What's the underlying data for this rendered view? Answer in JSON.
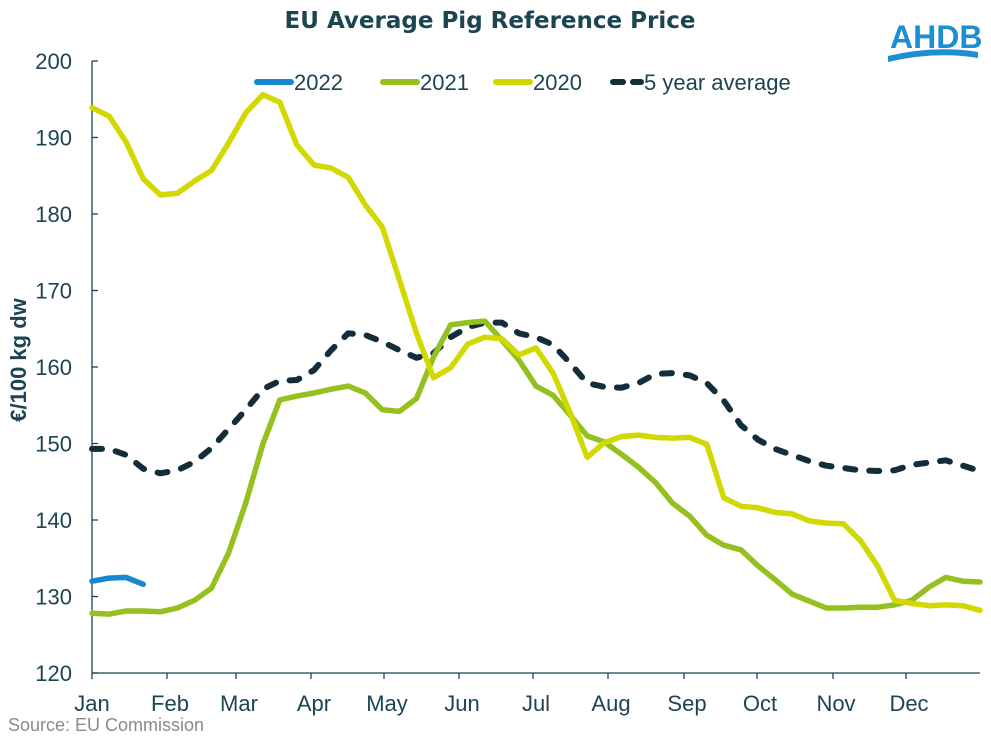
{
  "logo": {
    "text": "AHDB",
    "color": "#1b8fd2"
  },
  "source": "Source: EU Commission",
  "chart_data": {
    "type": "line",
    "title": "EU Average Pig Reference Price",
    "xlabel": "",
    "ylabel": "€/100 kg dw",
    "ylim": [
      120,
      200
    ],
    "yticks": [
      120,
      130,
      140,
      150,
      160,
      170,
      180,
      190,
      200
    ],
    "xticks": [
      "Jan",
      "Feb",
      "Mar",
      "Apr",
      "May",
      "Jun",
      "Jul",
      "Aug",
      "Sep",
      "Oct",
      "Nov",
      "Dec"
    ],
    "x_unit": "week",
    "grid": false,
    "legend_position": "top",
    "series": [
      {
        "name": "2022",
        "color": "#1787cf",
        "dash": false,
        "values": [
          132.0,
          132.4,
          132.5,
          131.6
        ]
      },
      {
        "name": "2021",
        "color": "#94c11f",
        "dash": false,
        "values": [
          127.8,
          127.7,
          128.1,
          128.1,
          128.0,
          128.5,
          129.5,
          131.1,
          135.7,
          142.2,
          149.9,
          155.7,
          156.2,
          156.6,
          157.1,
          157.5,
          156.6,
          154.4,
          154.2,
          155.9,
          161.3,
          165.5,
          165.8,
          166.0,
          163.5,
          160.9,
          157.5,
          156.3,
          153.7,
          151.0,
          150.2,
          148.6,
          146.9,
          144.9,
          142.2,
          140.5,
          138.0,
          136.7,
          136.1,
          134.0,
          132.2,
          130.3,
          129.4,
          128.5,
          128.5,
          128.6,
          128.6,
          128.9,
          129.5,
          131.2,
          132.5,
          132.0,
          131.9
        ]
      },
      {
        "name": "2020",
        "color": "#d2d900",
        "dash": false,
        "values": [
          193.9,
          192.8,
          189.4,
          184.6,
          182.5,
          182.7,
          184.3,
          185.7,
          189.3,
          193.2,
          195.6,
          194.6,
          189.0,
          186.4,
          186.0,
          184.8,
          181.2,
          178.3,
          171.4,
          164.4,
          158.6,
          159.9,
          163.0,
          163.9,
          163.7,
          161.6,
          162.5,
          159.2,
          154.0,
          148.2,
          150.1,
          150.9,
          151.1,
          150.8,
          150.7,
          150.8,
          149.9,
          142.9,
          141.8,
          141.6,
          141.0,
          140.8,
          139.9,
          139.6,
          139.5,
          137.3,
          134.0,
          129.5,
          129.1,
          128.8,
          128.9,
          128.8,
          128.2
        ]
      },
      {
        "name": "5 year average",
        "color": "#132e3a",
        "dash": true,
        "values": [
          149.3,
          149.3,
          148.5,
          146.7,
          146.1,
          146.5,
          147.6,
          149.4,
          151.9,
          154.4,
          157.1,
          158.2,
          158.3,
          159.6,
          162.2,
          164.4,
          164.2,
          163.3,
          162.2,
          161.2,
          161.8,
          163.9,
          165.2,
          165.8,
          165.8,
          164.4,
          163.9,
          162.9,
          160.5,
          157.9,
          157.4,
          157.3,
          157.9,
          159.1,
          159.2,
          158.9,
          157.9,
          155.6,
          152.4,
          150.5,
          149.3,
          148.5,
          147.7,
          147.1,
          146.8,
          146.5,
          146.4,
          146.5,
          147.2,
          147.5,
          147.8,
          147.1,
          146.4
        ]
      }
    ]
  }
}
